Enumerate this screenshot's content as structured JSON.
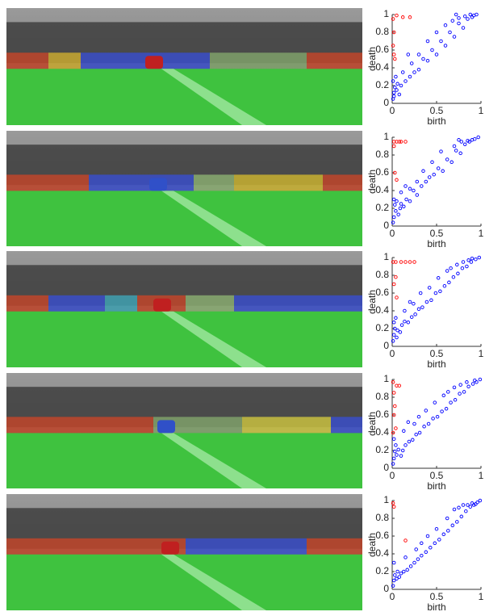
{
  "chart_data": [
    {
      "type": "scatter",
      "xlabel": "birth",
      "ylabel": "death",
      "xlim": [
        0,
        1
      ],
      "ylim": [
        0,
        1
      ],
      "xticks": [
        0,
        0.5,
        1
      ],
      "yticks": [
        0,
        0.2,
        0.4,
        0.6,
        0.8,
        1
      ],
      "series": [
        {
          "color": "#0000ff",
          "x": [
            0.01,
            0.02,
            0.03,
            0.01,
            0.04,
            0.02,
            0.05,
            0.06,
            0.08,
            0.1,
            0.15,
            0.2,
            0.25,
            0.3,
            0.35,
            0.4,
            0.45,
            0.5,
            0.55,
            0.6,
            0.65,
            0.7,
            0.75,
            0.8,
            0.85,
            0.9,
            0.95,
            0.88,
            0.82,
            0.75,
            0.68,
            0.72,
            0.3,
            0.22,
            0.4,
            0.5,
            0.12,
            0.18,
            0.6,
            0.92
          ],
          "values": [
            0.05,
            0.12,
            0.18,
            0.25,
            0.3,
            0.08,
            0.15,
            0.22,
            0.1,
            0.2,
            0.25,
            0.3,
            0.35,
            0.38,
            0.5,
            0.48,
            0.6,
            0.55,
            0.7,
            0.65,
            0.8,
            0.75,
            0.9,
            0.85,
            0.95,
            0.97,
            1,
            1,
            0.98,
            0.96,
            0.93,
            1,
            0.55,
            0.45,
            0.7,
            0.8,
            0.35,
            0.55,
            0.88,
            0.99
          ]
        },
        {
          "color": "#ff0000",
          "x": [
            0.01,
            0.02,
            0.01,
            0.03,
            0.02,
            0.12,
            0.2,
            0.05
          ],
          "values": [
            0.95,
            0.8,
            0.65,
            0.5,
            0.55,
            0.97,
            0.97,
            0.99
          ]
        }
      ]
    },
    {
      "type": "scatter",
      "xlabel": "birth",
      "ylabel": "death",
      "xlim": [
        0,
        1
      ],
      "ylim": [
        0,
        1
      ],
      "xticks": [
        0,
        0.5,
        1
      ],
      "yticks": [
        0,
        0.2,
        0.4,
        0.6,
        0.8,
        1
      ],
      "series": [
        {
          "color": "#0000ff",
          "x": [
            0.01,
            0.02,
            0.04,
            0.03,
            0.05,
            0.02,
            0.07,
            0.09,
            0.1,
            0.13,
            0.16,
            0.2,
            0.24,
            0.28,
            0.33,
            0.38,
            0.42,
            0.47,
            0.52,
            0.57,
            0.62,
            0.67,
            0.72,
            0.77,
            0.82,
            0.87,
            0.93,
            0.97,
            0.85,
            0.78,
            0.7,
            0.75,
            0.28,
            0.2,
            0.35,
            0.45,
            0.1,
            0.15,
            0.55,
            0.9
          ],
          "values": [
            0.04,
            0.1,
            0.17,
            0.24,
            0.28,
            0.3,
            0.13,
            0.2,
            0.25,
            0.22,
            0.3,
            0.28,
            0.4,
            0.35,
            0.45,
            0.5,
            0.55,
            0.58,
            0.65,
            0.62,
            0.75,
            0.72,
            0.85,
            0.82,
            0.92,
            0.95,
            0.98,
            1,
            0.96,
            0.95,
            0.9,
            0.97,
            0.5,
            0.42,
            0.62,
            0.72,
            0.38,
            0.45,
            0.84,
            0.97
          ]
        },
        {
          "color": "#ff0000",
          "x": [
            0.02,
            0.05,
            0.08,
            0.1,
            0.15,
            0.02,
            0.03,
            0.05
          ],
          "values": [
            0.95,
            0.95,
            0.95,
            0.95,
            0.95,
            0.9,
            0.6,
            0.52
          ]
        }
      ]
    },
    {
      "type": "scatter",
      "xlabel": "birth",
      "ylabel": "death",
      "xlim": [
        0,
        1
      ],
      "ylim": [
        0,
        1
      ],
      "xticks": [
        0,
        0.5,
        1
      ],
      "yticks": [
        0,
        0.2,
        0.4,
        0.6,
        0.8,
        1
      ],
      "series": [
        {
          "color": "#0000ff",
          "x": [
            0.01,
            0.02,
            0.03,
            0.02,
            0.05,
            0.04,
            0.06,
            0.09,
            0.11,
            0.14,
            0.18,
            0.22,
            0.26,
            0.3,
            0.34,
            0.39,
            0.44,
            0.49,
            0.54,
            0.59,
            0.64,
            0.69,
            0.74,
            0.79,
            0.84,
            0.89,
            0.94,
            0.98,
            0.86,
            0.8,
            0.73,
            0.66,
            0.32,
            0.24,
            0.42,
            0.52,
            0.14,
            0.2,
            0.62,
            0.9
          ],
          "values": [
            0.06,
            0.13,
            0.2,
            0.27,
            0.1,
            0.32,
            0.18,
            0.16,
            0.24,
            0.28,
            0.27,
            0.33,
            0.36,
            0.42,
            0.44,
            0.5,
            0.52,
            0.6,
            0.62,
            0.68,
            0.72,
            0.78,
            0.82,
            0.88,
            0.9,
            0.95,
            0.98,
            1,
            0.97,
            0.95,
            0.92,
            0.88,
            0.6,
            0.48,
            0.66,
            0.77,
            0.4,
            0.5,
            0.85,
            0.99
          ]
        },
        {
          "color": "#ff0000",
          "x": [
            0.01,
            0.04,
            0.1,
            0.15,
            0.2,
            0.25,
            0.04,
            0.02,
            0.05
          ],
          "values": [
            0.95,
            0.95,
            0.95,
            0.95,
            0.95,
            0.95,
            0.78,
            0.7,
            0.55
          ]
        }
      ]
    },
    {
      "type": "scatter",
      "xlabel": "birth",
      "ylabel": "death",
      "xlim": [
        0,
        1
      ],
      "ylim": [
        0,
        1
      ],
      "xticks": [
        0,
        0.5,
        1
      ],
      "yticks": [
        0,
        0.2,
        0.4,
        0.6,
        0.8,
        1
      ],
      "series": [
        {
          "color": "#0000ff",
          "x": [
            0.01,
            0.02,
            0.03,
            0.04,
            0.02,
            0.05,
            0.07,
            0.1,
            0.12,
            0.15,
            0.19,
            0.23,
            0.27,
            0.31,
            0.36,
            0.41,
            0.46,
            0.51,
            0.56,
            0.61,
            0.66,
            0.71,
            0.76,
            0.81,
            0.86,
            0.91,
            0.95,
            0.99,
            0.84,
            0.77,
            0.7,
            0.63,
            0.3,
            0.25,
            0.38,
            0.48,
            0.13,
            0.18,
            0.58,
            0.93
          ],
          "values": [
            0.05,
            0.11,
            0.19,
            0.26,
            0.33,
            0.15,
            0.21,
            0.14,
            0.2,
            0.26,
            0.3,
            0.32,
            0.38,
            0.4,
            0.47,
            0.5,
            0.56,
            0.58,
            0.64,
            0.67,
            0.74,
            0.77,
            0.84,
            0.86,
            0.92,
            0.95,
            0.97,
            1,
            0.97,
            0.94,
            0.91,
            0.86,
            0.58,
            0.5,
            0.65,
            0.74,
            0.42,
            0.52,
            0.82,
            0.99
          ]
        },
        {
          "color": "#ff0000",
          "x": [
            0.01,
            0.05,
            0.08,
            0.02,
            0.03,
            0.02,
            0.01,
            0.04
          ],
          "values": [
            0.97,
            0.93,
            0.93,
            0.85,
            0.7,
            0.6,
            0.4,
            0.45
          ]
        }
      ]
    },
    {
      "type": "scatter",
      "xlabel": "birth",
      "ylabel": "death",
      "xlim": [
        0,
        1
      ],
      "ylim": [
        0,
        1
      ],
      "xticks": [
        0,
        0.5,
        1
      ],
      "yticks": [
        0,
        0.2,
        0.4,
        0.6,
        0.8,
        1
      ],
      "series": [
        {
          "color": "#0000ff",
          "x": [
            0.01,
            0.02,
            0.03,
            0.02,
            0.05,
            0.06,
            0.08,
            0.1,
            0.13,
            0.17,
            0.21,
            0.25,
            0.29,
            0.33,
            0.38,
            0.43,
            0.48,
            0.53,
            0.58,
            0.63,
            0.68,
            0.73,
            0.78,
            0.83,
            0.88,
            0.92,
            0.96,
            0.99,
            0.85,
            0.8,
            0.75,
            0.7,
            0.33,
            0.27,
            0.4,
            0.5,
            0.15,
            0.62,
            0.9,
            0.94
          ],
          "values": [
            0.04,
            0.1,
            0.16,
            0.3,
            0.12,
            0.2,
            0.14,
            0.18,
            0.2,
            0.22,
            0.26,
            0.3,
            0.34,
            0.38,
            0.42,
            0.47,
            0.52,
            0.56,
            0.62,
            0.66,
            0.72,
            0.76,
            0.82,
            0.88,
            0.93,
            0.95,
            0.98,
            1,
            0.95,
            0.95,
            0.92,
            0.9,
            0.52,
            0.45,
            0.6,
            0.68,
            0.36,
            0.8,
            0.97,
            0.96
          ]
        },
        {
          "color": "#ff0000",
          "x": [
            0.01,
            0.02,
            0.15
          ],
          "values": [
            0.97,
            0.93,
            0.55
          ]
        }
      ]
    }
  ]
}
